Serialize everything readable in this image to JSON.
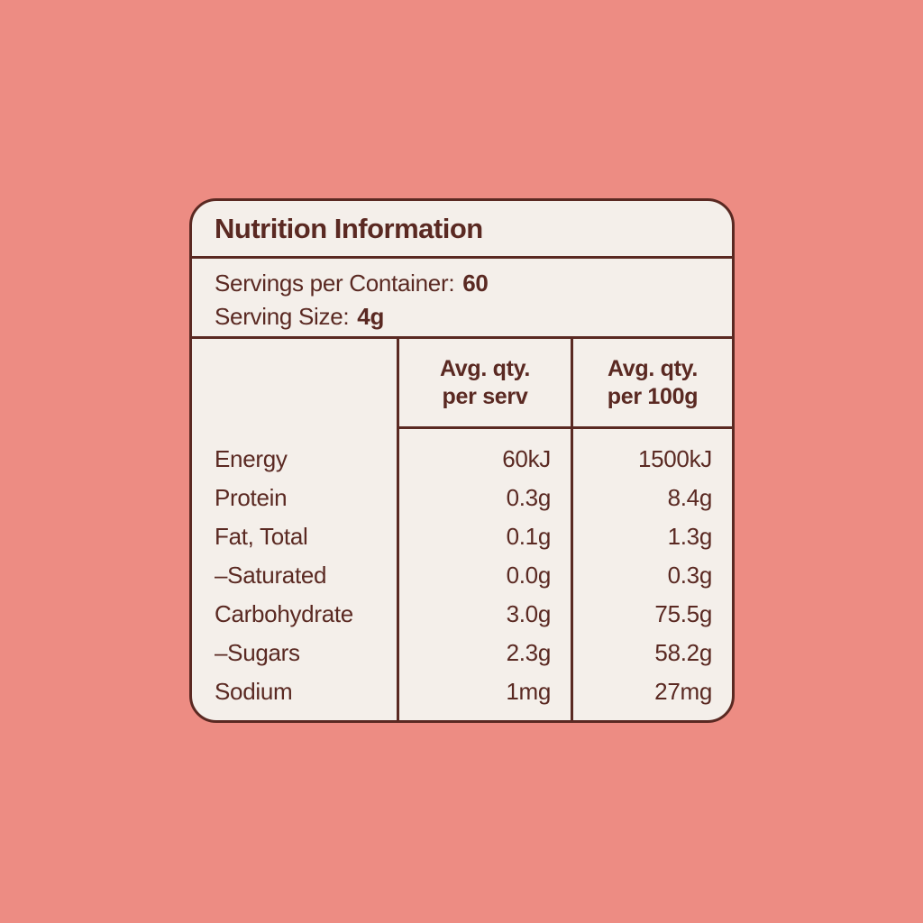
{
  "title": "Nutrition Information",
  "servings": {
    "per_container_label": "Servings per Container:",
    "per_container_value": "60",
    "size_label": "Serving Size:",
    "size_value": "4g"
  },
  "columns": {
    "serv": {
      "line1": "Avg. qty.",
      "line2": "per serv"
    },
    "per100": {
      "line1": "Avg. qty.",
      "line2": "per 100g"
    }
  },
  "rows": [
    {
      "label": "Energy",
      "per_serv": "60kJ",
      "per_100g": "1500kJ"
    },
    {
      "label": "Protein",
      "per_serv": "0.3g",
      "per_100g": "8.4g"
    },
    {
      "label": "Fat, Total",
      "per_serv": "0.1g",
      "per_100g": "1.3g"
    },
    {
      "label": "–Saturated",
      "per_serv": "0.0g",
      "per_100g": "0.3g"
    },
    {
      "label": "Carbohydrate",
      "per_serv": "3.0g",
      "per_100g": "75.5g"
    },
    {
      "label": "–Sugars",
      "per_serv": "2.3g",
      "per_100g": "58.2g"
    },
    {
      "label": "Sodium",
      "per_serv": "1mg",
      "per_100g": "27mg"
    }
  ],
  "colors": {
    "background": "#ED8C83",
    "panel": "#F4EFEA",
    "ink": "#5A2922"
  }
}
